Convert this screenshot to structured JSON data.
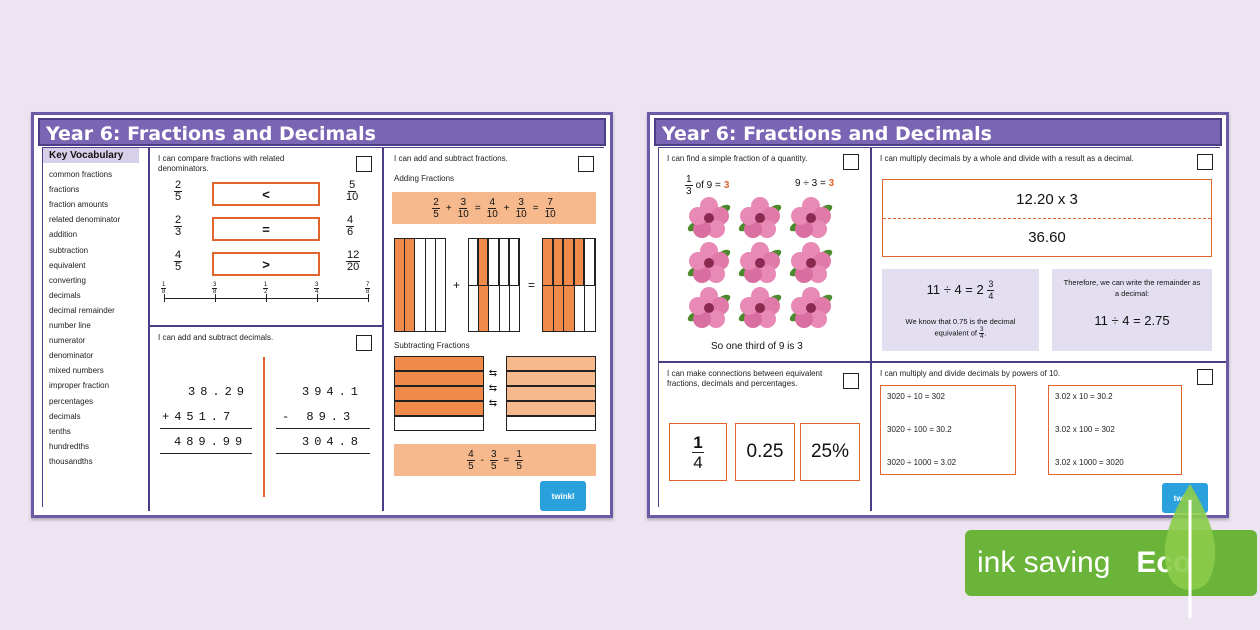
{
  "sheet1": {
    "title": "Year 6: Fractions and Decimals",
    "vocab_title": "Key Vocabulary",
    "vocab": [
      "common fractions",
      "fractions",
      "fraction amounts",
      "related denominator",
      "addition",
      "subtraction",
      "equivalent",
      "converting",
      "decimals",
      "decimal remainder",
      "number line",
      "numerator",
      "denominator",
      "mixed numbers",
      "improper fraction",
      "percentages",
      "decimals",
      "tenths",
      "hundredths",
      "thousandths"
    ],
    "compare": {
      "text": "I can compare fractions with related denominators.",
      "rows": [
        {
          "l": [
            "2",
            "5"
          ],
          "op": "<",
          "r": [
            "5",
            "10"
          ]
        },
        {
          "l": [
            "2",
            "3"
          ],
          "op": "=",
          "r": [
            "4",
            "6"
          ]
        },
        {
          "l": [
            "4",
            "5"
          ],
          "op": ">",
          "r": [
            "12",
            "20"
          ]
        }
      ],
      "numberline": [
        [
          "1",
          "8"
        ],
        [
          "3",
          "8"
        ],
        [
          "1",
          "2"
        ],
        [
          "3",
          "4"
        ],
        [
          "7",
          "8"
        ]
      ]
    },
    "add_sub_fractions": {
      "text": "I can add and subtract fractions.",
      "adding_title": "Adding Fractions",
      "adding": [
        [
          "2",
          "5"
        ],
        "+",
        [
          "3",
          "10"
        ],
        "=",
        [
          "4",
          "10"
        ],
        "+",
        [
          "3",
          "10"
        ],
        "=",
        [
          "7",
          "10"
        ]
      ],
      "subtracting_title": "Subtracting Fractions",
      "subtracting": [
        [
          "4",
          "5"
        ],
        "-",
        [
          "3",
          "5"
        ],
        "=",
        [
          "1",
          "5"
        ]
      ]
    },
    "add_sub_decimals": {
      "text": "I can add and subtract decimals.",
      "a1": "38.29",
      "a2": "+451.7",
      "a3": "489.99",
      "s1": "394.1",
      "s2": "- 89.3",
      "s3": "304.8"
    },
    "logo": "twinkl"
  },
  "sheet2": {
    "title": "Year 6: Fractions and Decimals",
    "simple": {
      "text": "I can find a simple fraction of a quantity.",
      "frac": [
        "1",
        "3"
      ],
      "of_text": "of 9 = ",
      "ans": "3",
      "div_text": "9 ÷ 3 = ",
      "div_ans": "3",
      "caption": "So one third of 9 is 3"
    },
    "multiply": {
      "text": "I can multiply decimals by a whole and divide with a result as a decimal.",
      "calc1": "12.20 x 3",
      "calc2": "36.60",
      "left_eq": "11 ÷ 4 = 2",
      "left_frac": [
        "3",
        "4"
      ],
      "left_note": "We know that 0.75 is the decimal equivalent of",
      "note_frac": [
        "3",
        "4"
      ],
      "right_note": "Therefore, we can write the remainder as a decimal:",
      "right_eq": "11 ÷ 4 = 2.75"
    },
    "connections": {
      "text": "I can make connections between equivalent fractions, decimals and percentages.",
      "frac": [
        "1",
        "4"
      ],
      "dec": "0.25",
      "pct": "25%"
    },
    "powers": {
      "text": "I can multiply and divide decimals by powers of 10.",
      "left": [
        "3020 ÷ 10 = 302",
        "3020 ÷ 100 = 30.2",
        "3020 ÷ 1000 = 3.02"
      ],
      "right": [
        "3.02 x 10 = 30.2",
        "3.02 x 100 = 302",
        "3.02 x 1000 = 3020"
      ]
    },
    "logo": "twinkl"
  },
  "badge": {
    "text": "ink saving",
    "eco": "Eco"
  },
  "colors": {
    "purple": "#7a65b4",
    "orange": "#e0642c",
    "peach": "#f6b98e",
    "green": "#6bb43a",
    "twinkl": "#2aa1dc"
  }
}
